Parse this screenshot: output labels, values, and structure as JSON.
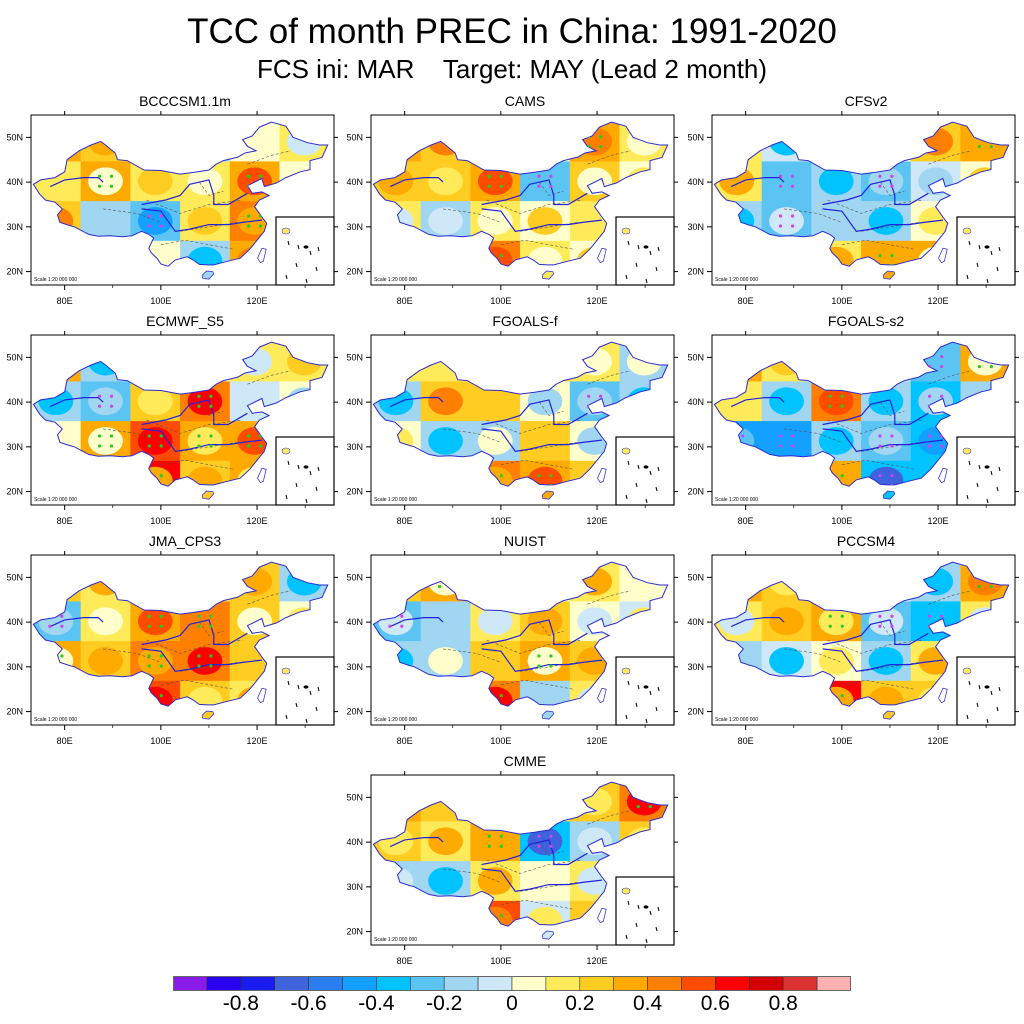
{
  "chart_data": {
    "type": "heatmap",
    "title": "TCC of month PREC in China: 1991-2020",
    "subtitle": "FCS ini: MAR    Target: MAY (Lead 2 month)",
    "variable": "Temporal correlation coefficient (TCC) of monthly precipitation",
    "region": "China",
    "period": "1991-2020",
    "init_month": "MAR",
    "target_month": "MAY",
    "lead": "2 month",
    "x_ticks": [
      "80E",
      "100E",
      "120E"
    ],
    "y_ticks": [
      "20N",
      "30N",
      "40N",
      "50N"
    ],
    "lon_range": [
      73,
      136
    ],
    "lat_range": [
      17,
      55
    ],
    "scale_text": "Scale 1:20 000 000",
    "panels": [
      {
        "name": "BCCCSM1.1m",
        "pattern": [
          [
            0.3,
            0.2,
            0.1,
            -0.2,
            0.0,
            0.1
          ],
          [
            0.1,
            0.3,
            0.1,
            0.1,
            0.3,
            0.0
          ],
          [
            0.2,
            -0.2,
            -0.3,
            0.1,
            0.4,
            -0.1
          ],
          [
            0.3,
            0.1,
            0.0,
            -0.2,
            0.3,
            0.1
          ]
        ]
      },
      {
        "name": "CAMS",
        "pattern": [
          [
            0.3,
            0.2,
            0.1,
            0.0,
            0.3,
            0.1
          ],
          [
            0.2,
            0.2,
            0.3,
            -0.3,
            0.2,
            0.0
          ],
          [
            0.1,
            -0.2,
            0.1,
            0.0,
            0.1,
            -0.1
          ],
          [
            0.0,
            0.0,
            0.4,
            0.1,
            0.0,
            0.0
          ]
        ]
      },
      {
        "name": "CFSv2",
        "pattern": [
          [
            0.1,
            -0.1,
            0.0,
            0.0,
            0.2,
            0.3
          ],
          [
            0.1,
            -0.3,
            -0.2,
            -0.3,
            -0.1,
            0.0
          ],
          [
            -0.2,
            -0.3,
            -0.2,
            -0.2,
            0.0,
            0.0
          ],
          [
            0.0,
            -0.2,
            0.1,
            0.3,
            0.3,
            0.1
          ]
        ]
      },
      {
        "name": "ECMWF_S5",
        "pattern": [
          [
            0.3,
            -0.2,
            0.1,
            0.0,
            0.1,
            0.1
          ],
          [
            -0.2,
            -0.3,
            0.2,
            0.4,
            -0.1,
            0.0
          ],
          [
            0.0,
            0.3,
            0.5,
            0.3,
            0.3,
            0.1
          ],
          [
            0.0,
            0.1,
            0.6,
            0.2,
            0.3,
            0.2
          ]
        ]
      },
      {
        "name": "FGOALS-f",
        "pattern": [
          [
            0.1,
            0.1,
            0.0,
            0.2,
            0.1,
            -0.2
          ],
          [
            -0.2,
            0.2,
            0.2,
            0.0,
            -0.3,
            -0.2
          ],
          [
            0.0,
            -0.2,
            -0.2,
            0.2,
            0.0,
            -0.2
          ],
          [
            0.0,
            0.0,
            0.4,
            0.3,
            0.2,
            0.1
          ]
        ]
      },
      {
        "name": "FGOALS-s2",
        "pattern": [
          [
            0.3,
            0.1,
            0.3,
            -0.1,
            -0.3,
            0.3
          ],
          [
            0.1,
            -0.2,
            0.4,
            -0.2,
            -0.4,
            -0.2
          ],
          [
            -0.5,
            -0.5,
            -0.2,
            -0.3,
            -0.4,
            -0.3
          ],
          [
            0.0,
            0.1,
            0.3,
            -0.4,
            -0.4,
            -0.3
          ]
        ]
      },
      {
        "name": "JMA_CPS3",
        "pattern": [
          [
            0.2,
            0.1,
            0.0,
            0.1,
            0.2,
            -0.2
          ],
          [
            -0.3,
            0.1,
            0.3,
            0.4,
            0.2,
            0.0
          ],
          [
            0.3,
            0.2,
            0.4,
            0.4,
            0.2,
            0.1
          ],
          [
            0.0,
            0.0,
            0.5,
            0.2,
            0.1,
            0.0
          ]
        ]
      },
      {
        "name": "NUIST",
        "pattern": [
          [
            0.2,
            0.3,
            0.1,
            0.0,
            0.1,
            0.0
          ],
          [
            -0.3,
            -0.2,
            0.1,
            0.2,
            0.0,
            -0.1
          ],
          [
            -0.2,
            -0.2,
            0.2,
            0.3,
            0.2,
            -0.1
          ],
          [
            0.0,
            0.0,
            0.4,
            -0.2,
            0.1,
            0.0
          ]
        ]
      },
      {
        "name": "PCCSM4",
        "pattern": [
          [
            0.3,
            0.2,
            0.0,
            -0.1,
            -0.2,
            0.3
          ],
          [
            0.1,
            0.2,
            0.3,
            -0.3,
            -0.4,
            0.1
          ],
          [
            -0.2,
            -0.1,
            0.0,
            -0.2,
            0.1,
            0.0
          ],
          [
            0.0,
            0.0,
            0.6,
            0.2,
            0.2,
            0.0
          ]
        ]
      },
      {
        "name": "CMME",
        "pattern": [
          [
            0.3,
            0.2,
            0.1,
            0.1,
            0.2,
            0.4
          ],
          [
            0.2,
            0.1,
            0.3,
            -0.4,
            -0.2,
            0.2
          ],
          [
            -0.2,
            -0.2,
            0.1,
            0.0,
            0.1,
            0.0
          ],
          [
            0.0,
            0.1,
            0.5,
            -0.1,
            0.2,
            0.0
          ]
        ]
      }
    ],
    "colorbar": {
      "levels": [
        -0.9,
        -0.8,
        -0.7,
        -0.6,
        -0.5,
        -0.4,
        -0.3,
        -0.2,
        -0.1,
        0,
        0.1,
        0.2,
        0.3,
        0.4,
        0.5,
        0.6,
        0.7,
        0.8,
        0.9
      ],
      "colors": [
        "#8a1be8",
        "#2a00f0",
        "#1a1cf0",
        "#3f63dd",
        "#2b7ef0",
        "#14a0ff",
        "#00c3ff",
        "#5cc4f2",
        "#a0d6f2",
        "#cfe8f8",
        "#ffffcc",
        "#ffeb5a",
        "#ffcc22",
        "#ffaa00",
        "#ff7f00",
        "#ff4c00",
        "#ff0000",
        "#d40000",
        "#dc3232",
        "#ffb0b0"
      ],
      "tick_labels": [
        "-0.8",
        "-0.6",
        "-0.4",
        "-0.2",
        "0",
        "0.2",
        "0.4",
        "0.6",
        "0.8"
      ],
      "tick_values": [
        -0.8,
        -0.6,
        -0.4,
        -0.2,
        0,
        0.2,
        0.4,
        0.6,
        0.8
      ]
    },
    "markers": {
      "significant_positive": "#22cc22",
      "significant_negative": "#cc44ee"
    }
  }
}
